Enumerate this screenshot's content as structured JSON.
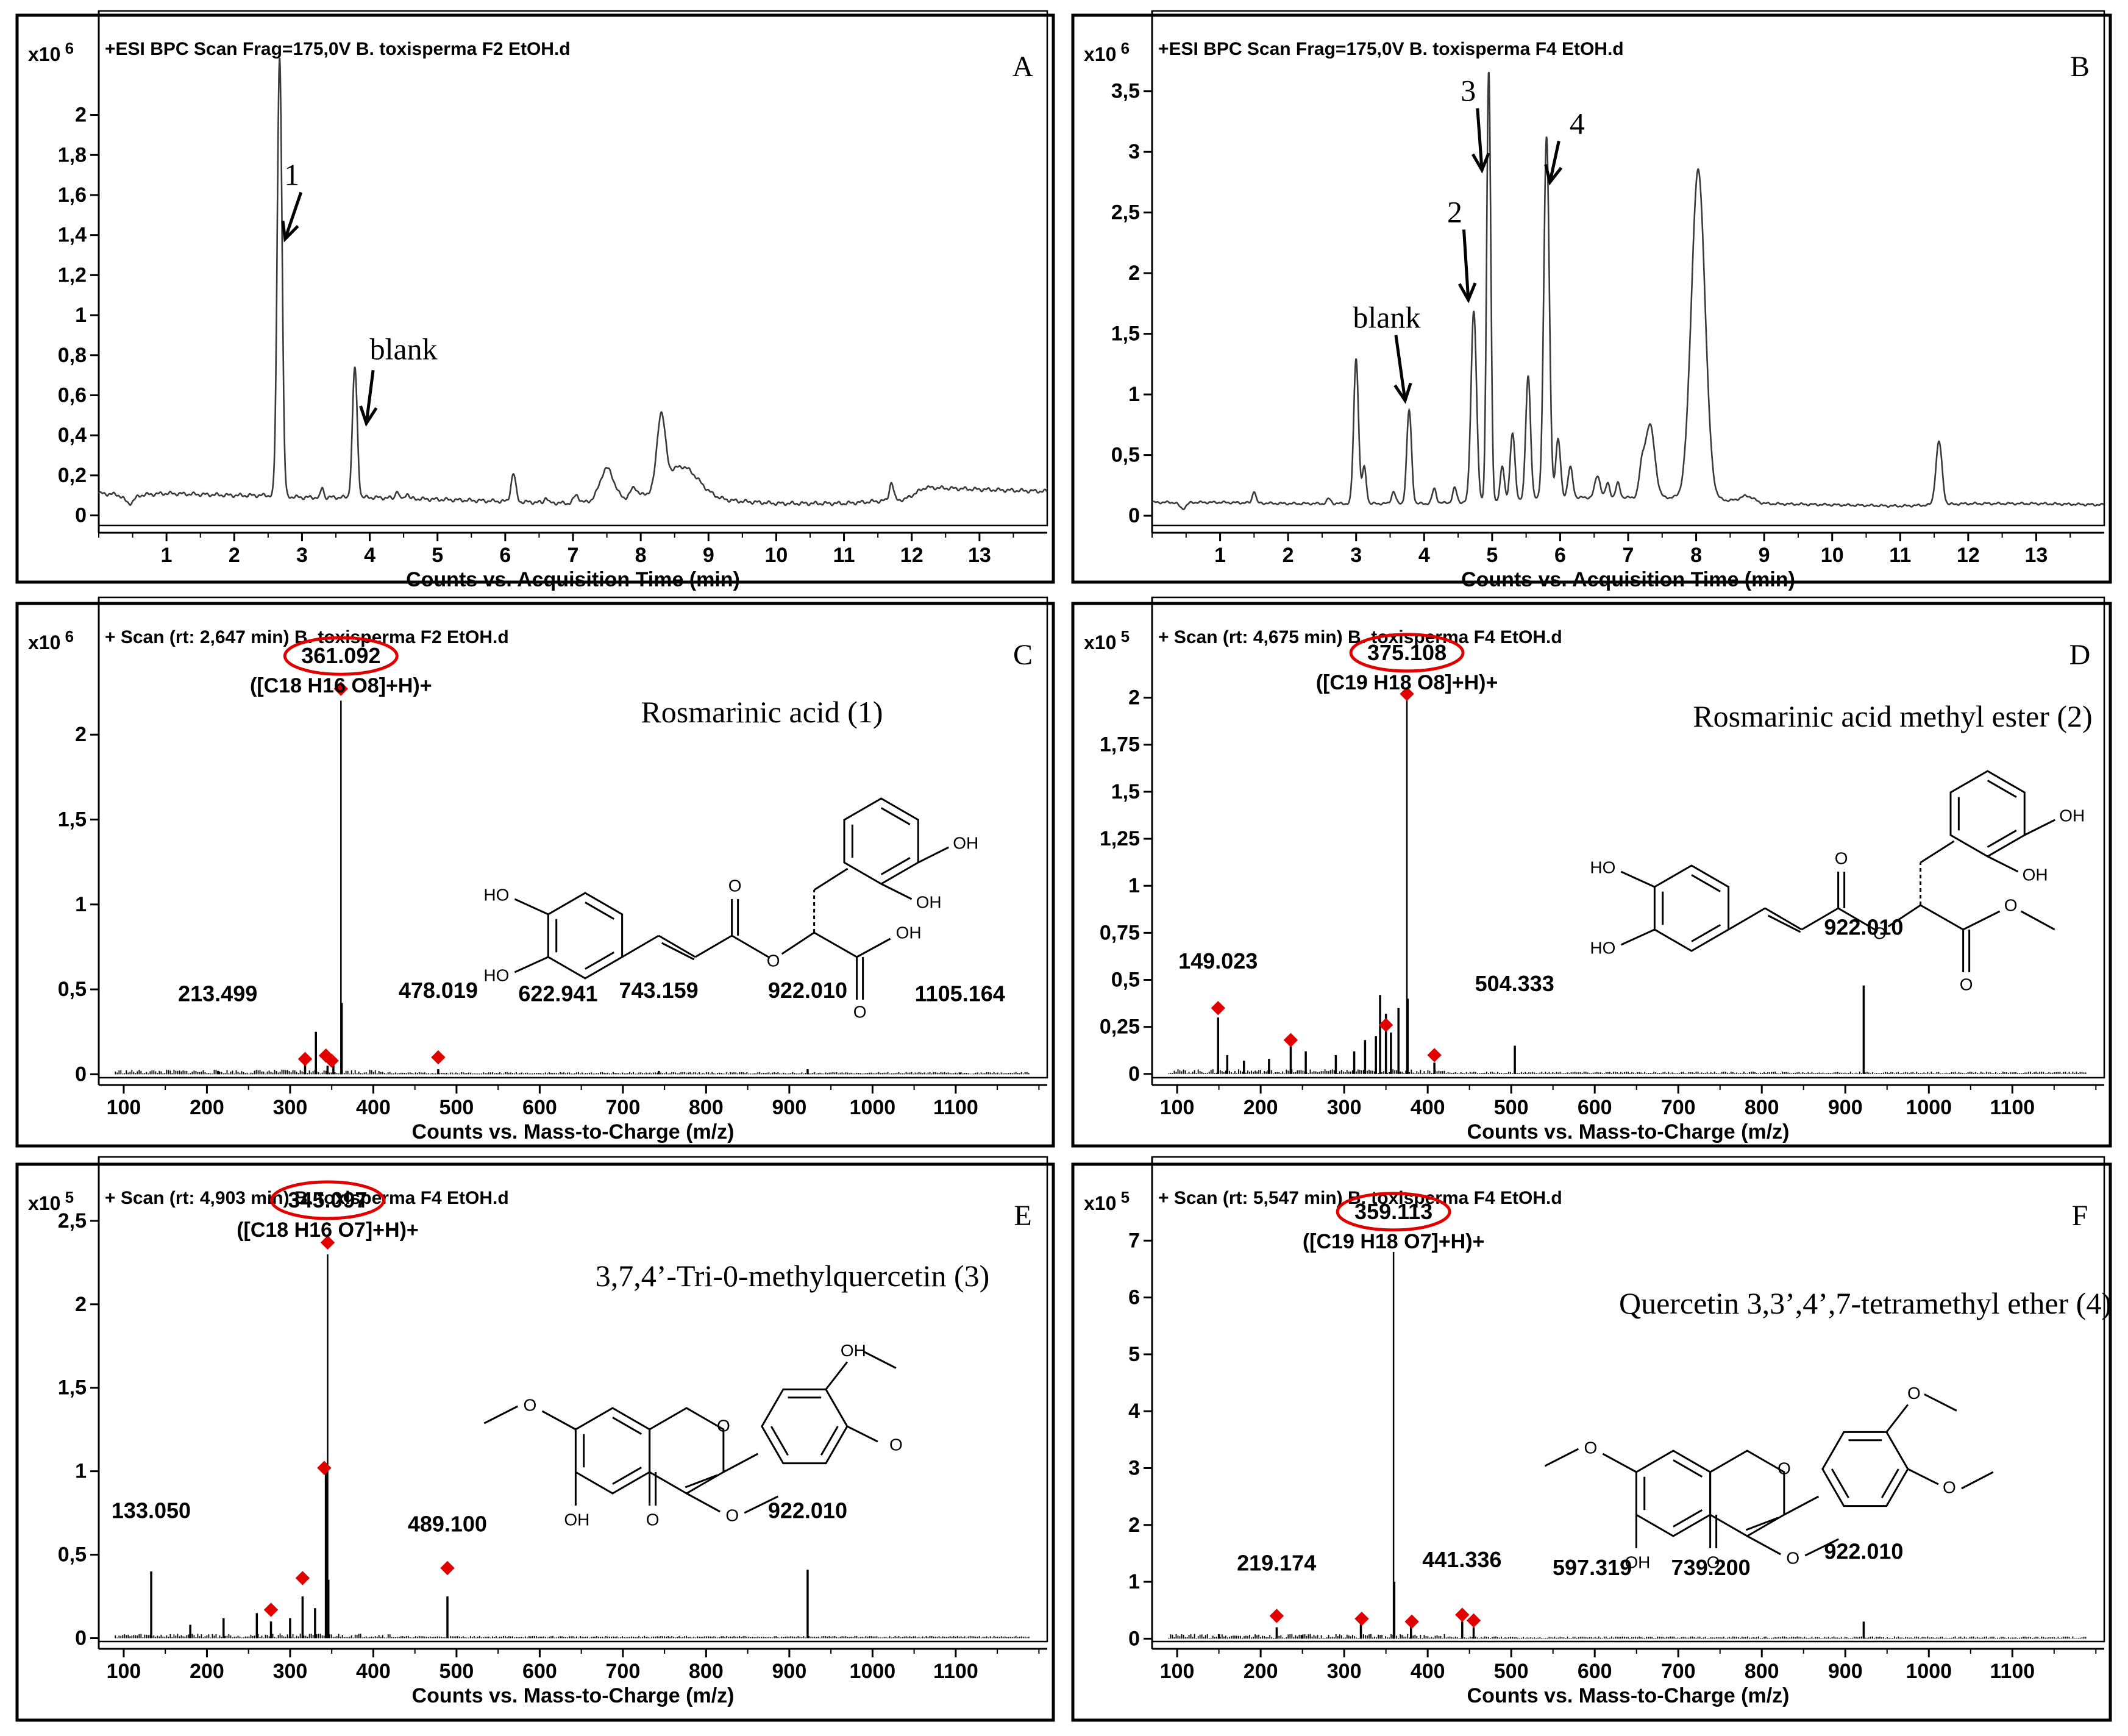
{
  "chart_data": [
    {
      "id": "A",
      "type": "line",
      "panel_letter": "A",
      "header": "+ESI BPC Scan Frag=175,0V B. toxisperma F2 EtOH.d",
      "y_scale_label": "x10",
      "y_scale_exp": "6",
      "xlabel": "Counts vs. Acquisition Time (min)",
      "xlim": [
        0,
        14
      ],
      "ylim": [
        -0.05,
        2.3
      ],
      "xticks": [
        1,
        2,
        3,
        4,
        5,
        6,
        7,
        8,
        9,
        10,
        11,
        12,
        13
      ],
      "xtick_labels": [
        "1",
        "2",
        "3",
        "4",
        "5",
        "6",
        "7",
        "8",
        "9",
        "10",
        "11",
        "12",
        "13"
      ],
      "yticks": [
        0,
        0.2,
        0.4,
        0.6,
        0.8,
        1,
        1.2,
        1.4,
        1.6,
        1.8,
        2
      ],
      "ytick_labels": [
        "0",
        "0,2",
        "0,4",
        "0,6",
        "0,8",
        "1",
        "1,2",
        "1,4",
        "1,6",
        "1,8",
        "2"
      ],
      "baseline": [
        [
          0,
          0.11
        ],
        [
          0.5,
          0.1
        ],
        [
          1,
          0.11
        ],
        [
          2,
          0.1
        ],
        [
          2.5,
          0.1
        ],
        [
          3,
          0.09
        ],
        [
          4,
          0.09
        ],
        [
          5,
          0.08
        ],
        [
          6,
          0.07
        ],
        [
          7,
          0.06
        ],
        [
          8,
          0.09
        ],
        [
          9,
          0.08
        ],
        [
          10,
          0.06
        ],
        [
          11,
          0.06
        ],
        [
          11.9,
          0.08
        ],
        [
          12.2,
          0.14
        ],
        [
          13,
          0.13
        ],
        [
          14,
          0.12
        ]
      ],
      "peaks": [
        [
          0.45,
          0.07,
          -0.04
        ],
        [
          2.67,
          0.035,
          2.2
        ],
        [
          3.3,
          0.02,
          0.05
        ],
        [
          3.78,
          0.035,
          0.65
        ],
        [
          4.4,
          0.02,
          0.04
        ],
        [
          4.55,
          0.02,
          0.03
        ],
        [
          6.12,
          0.035,
          0.14
        ],
        [
          6.6,
          0.02,
          0.03
        ],
        [
          7.05,
          0.04,
          0.04
        ],
        [
          7.5,
          0.1,
          0.16
        ],
        [
          7.9,
          0.05,
          0.05
        ],
        [
          8.3,
          0.06,
          0.35
        ],
        [
          8.6,
          0.25,
          0.16
        ],
        [
          11.7,
          0.03,
          0.09
        ]
      ],
      "annotations": [
        {
          "text": "1",
          "x": 2.85,
          "y": 1.65,
          "x2": 2.75,
          "y2": 1.38
        },
        {
          "text": "blank",
          "x": 4.5,
          "y": 0.78,
          "x2": 3.95,
          "y2": 0.46
        }
      ]
    },
    {
      "id": "B",
      "type": "line",
      "panel_letter": "B",
      "header": "+ESI BPC Scan Frag=175,0V B. toxisperma F4 EtOH.d",
      "y_scale_label": "x10",
      "y_scale_exp": "6",
      "xlabel": "Counts vs. Acquisition Time (min)",
      "xlim": [
        0,
        14
      ],
      "ylim": [
        -0.08,
        3.8
      ],
      "xticks": [
        1,
        2,
        3,
        4,
        5,
        6,
        7,
        8,
        9,
        10,
        11,
        12,
        13
      ],
      "xtick_labels": [
        "1",
        "2",
        "3",
        "4",
        "5",
        "6",
        "7",
        "8",
        "9",
        "10",
        "11",
        "12",
        "13"
      ],
      "yticks": [
        0,
        0.5,
        1,
        1.5,
        2,
        2.5,
        3,
        3.5
      ],
      "ytick_labels": [
        "0",
        "0,5",
        "1",
        "1,5",
        "2",
        "2,5",
        "3",
        "3,5"
      ],
      "baseline": [
        [
          0,
          0.11
        ],
        [
          1,
          0.11
        ],
        [
          2,
          0.1
        ],
        [
          3,
          0.1
        ],
        [
          4,
          0.1
        ],
        [
          5,
          0.12
        ],
        [
          6,
          0.15
        ],
        [
          7,
          0.15
        ],
        [
          8,
          0.15
        ],
        [
          9,
          0.1
        ],
        [
          10,
          0.09
        ],
        [
          11,
          0.08
        ],
        [
          12,
          0.1
        ],
        [
          13,
          0.1
        ],
        [
          14,
          0.09
        ]
      ],
      "peaks": [
        [
          0.45,
          0.05,
          -0.05
        ],
        [
          1.5,
          0.025,
          0.1
        ],
        [
          2.6,
          0.03,
          0.04
        ],
        [
          3.0,
          0.035,
          1.2
        ],
        [
          3.12,
          0.03,
          0.3
        ],
        [
          3.55,
          0.03,
          0.1
        ],
        [
          3.78,
          0.035,
          0.77
        ],
        [
          4.15,
          0.03,
          0.12
        ],
        [
          4.45,
          0.03,
          0.12
        ],
        [
          4.73,
          0.04,
          1.58
        ],
        [
          4.95,
          0.03,
          3.55
        ],
        [
          5.15,
          0.03,
          0.28
        ],
        [
          5.3,
          0.035,
          0.55
        ],
        [
          5.53,
          0.035,
          1.02
        ],
        [
          5.8,
          0.04,
          2.98
        ],
        [
          5.97,
          0.035,
          0.48
        ],
        [
          6.15,
          0.035,
          0.25
        ],
        [
          6.55,
          0.04,
          0.18
        ],
        [
          6.7,
          0.03,
          0.12
        ],
        [
          6.85,
          0.03,
          0.12
        ],
        [
          7.2,
          0.04,
          0.2
        ],
        [
          7.32,
          0.07,
          0.6
        ],
        [
          8.03,
          0.1,
          2.7
        ],
        [
          8.75,
          0.1,
          0.05
        ],
        [
          11.57,
          0.045,
          0.52
        ]
      ],
      "annotations": [
        {
          "text": "blank",
          "x": 3.45,
          "y": 1.55,
          "x2": 3.72,
          "y2": 0.95
        },
        {
          "text": "2",
          "x": 4.45,
          "y": 2.42,
          "x2": 4.65,
          "y2": 1.78
        },
        {
          "text": "3",
          "x": 4.65,
          "y": 3.42,
          "x2": 4.85,
          "y2": 2.85
        },
        {
          "text": "4",
          "x": 6.25,
          "y": 3.15,
          "x2": 5.85,
          "y2": 2.75
        }
      ]
    },
    {
      "id": "C",
      "type": "bar",
      "panel_letter": "C",
      "header": "+ Scan (rt: 2,647 min) B. toxisperma F2 EtOH.d",
      "y_scale_label": "x10",
      "y_scale_exp": "6",
      "xlabel": "Counts vs. Mass-to-Charge (m/z)",
      "xlim": [
        70,
        1210
      ],
      "ylim": [
        -0.02,
        2.55
      ],
      "xticks": [
        100,
        200,
        300,
        400,
        500,
        600,
        700,
        800,
        900,
        1000,
        1100
      ],
      "xtick_labels": [
        "100",
        "200",
        "300",
        "400",
        "500",
        "600",
        "700",
        "800",
        "900",
        "1000",
        "1100"
      ],
      "yticks": [
        0,
        0.5,
        1,
        1.5,
        2
      ],
      "ytick_labels": [
        "0",
        "0,5",
        "1",
        "1,5",
        "2"
      ],
      "peaks": [
        [
          361.092,
          2.2
        ],
        [
          362,
          0.42
        ],
        [
          331,
          0.25
        ],
        [
          318,
          0.12
        ],
        [
          345,
          0.05
        ],
        [
          352,
          0.07
        ],
        [
          478.019,
          0.03
        ],
        [
          213.499,
          0.02
        ],
        [
          743.159,
          0.02
        ],
        [
          922.01,
          0.03
        ],
        [
          1105.164,
          0.01
        ]
      ],
      "markers": [
        [
          318,
          0.09
        ],
        [
          343,
          0.11
        ],
        [
          350,
          0.08
        ],
        [
          478,
          0.1
        ],
        [
          361.092,
          2.27
        ]
      ],
      "peak_labels": [
        {
          "text": "213.499",
          "x": 213,
          "y": 0.43
        },
        {
          "text": "478.019",
          "x": 478,
          "y": 0.45
        },
        {
          "text": "622.941",
          "x": 622,
          "y": 0.43
        },
        {
          "text": "743.159",
          "x": 743,
          "y": 0.45
        },
        {
          "text": "922.010",
          "x": 922,
          "y": 0.45
        },
        {
          "text": "1105.164",
          "x": 1105,
          "y": 0.43
        }
      ],
      "main_label": "361.092",
      "main_x": 361.092,
      "main_y": 2.42,
      "formula": "([C18 H16 O8]+H)+",
      "compound": "Rosmarinic acid (1)",
      "structure_labels": [
        "HO",
        "HO",
        "OH",
        "OH",
        "O",
        "O",
        "O",
        "OH",
        "O"
      ]
    },
    {
      "id": "D",
      "type": "bar",
      "panel_letter": "D",
      "header": "+ Scan (rt: 4,675 min) B. toxisperma F4 EtOH.d",
      "y_scale_label": "x10",
      "y_scale_exp": "5",
      "xlabel": "Counts vs. Mass-to-Charge (m/z)",
      "xlim": [
        70,
        1210
      ],
      "ylim": [
        -0.02,
        2.3
      ],
      "xticks": [
        100,
        200,
        300,
        400,
        500,
        600,
        700,
        800,
        900,
        1000,
        1100
      ],
      "xtick_labels": [
        "100",
        "200",
        "300",
        "400",
        "500",
        "600",
        "700",
        "800",
        "900",
        "1000",
        "1100"
      ],
      "yticks": [
        0,
        0.25,
        0.5,
        0.75,
        1,
        1.25,
        1.5,
        1.75,
        2
      ],
      "ytick_labels": [
        "0",
        "0,25",
        "0,5",
        "0,75",
        "1",
        "1,25",
        "1,5",
        "1,75",
        "2"
      ],
      "peaks": [
        [
          375.108,
          2.0
        ],
        [
          149.023,
          0.3
        ],
        [
          343,
          0.42
        ],
        [
          350,
          0.32
        ],
        [
          356,
          0.22
        ],
        [
          365,
          0.35
        ],
        [
          376,
          0.4
        ],
        [
          236,
          0.15
        ],
        [
          254,
          0.12
        ],
        [
          210,
          0.08
        ],
        [
          312,
          0.12
        ],
        [
          408,
          0.06
        ],
        [
          504.333,
          0.15
        ],
        [
          922.01,
          0.47
        ],
        [
          160,
          0.1
        ],
        [
          180,
          0.07
        ],
        [
          290,
          0.1
        ],
        [
          325,
          0.18
        ],
        [
          338,
          0.2
        ]
      ],
      "markers": [
        [
          149.023,
          0.35
        ],
        [
          236,
          0.18
        ],
        [
          350,
          0.26
        ],
        [
          408,
          0.1
        ],
        [
          375.108,
          2.02
        ]
      ],
      "peak_labels": [
        {
          "text": "149.023",
          "x": 149,
          "y": 0.56
        },
        {
          "text": "504.333",
          "x": 504,
          "y": 0.44
        },
        {
          "text": "922.010",
          "x": 922,
          "y": 0.74
        }
      ],
      "main_label": "375.108",
      "main_x": 375.108,
      "main_y": 2.2,
      "formula": "([C19 H18 O8]+H)+",
      "compound": "Rosmarinic acid methyl ester (2)",
      "structure_labels": [
        "HO",
        "HO",
        "OH",
        "OH",
        "O",
        "O",
        "O",
        "O"
      ]
    },
    {
      "id": "E",
      "type": "bar",
      "panel_letter": "E",
      "header": "+ Scan (rt: 4,903 min) B. toxisperma F4 EtOH.d",
      "y_scale_label": "x10",
      "y_scale_exp": "5",
      "xlabel": "Counts vs. Mass-to-Charge (m/z)",
      "xlim": [
        70,
        1210
      ],
      "ylim": [
        -0.02,
        2.62
      ],
      "xticks": [
        100,
        200,
        300,
        400,
        500,
        600,
        700,
        800,
        900,
        1000,
        1100
      ],
      "xtick_labels": [
        "100",
        "200",
        "300",
        "400",
        "500",
        "600",
        "700",
        "800",
        "900",
        "1000",
        "1100"
      ],
      "yticks": [
        0,
        0.5,
        1,
        1.5,
        2,
        2.5
      ],
      "ytick_labels": [
        "0",
        "0,5",
        "1",
        "1,5",
        "2",
        "2,5"
      ],
      "peaks": [
        [
          345.097,
          2.3
        ],
        [
          343,
          1.0
        ],
        [
          346,
          0.35
        ],
        [
          133.05,
          0.4
        ],
        [
          489.1,
          0.25
        ],
        [
          922.01,
          0.41
        ],
        [
          315,
          0.25
        ],
        [
          277,
          0.1
        ],
        [
          220,
          0.12
        ],
        [
          180,
          0.08
        ],
        [
          260,
          0.15
        ],
        [
          300,
          0.12
        ],
        [
          330,
          0.18
        ]
      ],
      "markers": [
        [
          277,
          0.17
        ],
        [
          315,
          0.36
        ],
        [
          341,
          1.02
        ],
        [
          345.097,
          2.37
        ],
        [
          489.1,
          0.42
        ]
      ],
      "peak_labels": [
        {
          "text": "133.050",
          "x": 133,
          "y": 0.72
        },
        {
          "text": "489.100",
          "x": 489,
          "y": 0.64
        },
        {
          "text": "922.010",
          "x": 922,
          "y": 0.72
        }
      ],
      "main_label": "345.097",
      "main_x": 345.097,
      "main_y": 2.58,
      "formula": "([C18 H16 O7]+H)+",
      "compound": "3,7,4’-Tri-0-methylquercetin (3)",
      "structure_labels": [
        "O",
        "OH",
        "O",
        "O",
        "OH",
        "O",
        "O"
      ]
    },
    {
      "id": "F",
      "type": "bar",
      "panel_letter": "F",
      "header": "+ Scan (rt: 5,547 min) B. toxisperma F4 EtOH.d",
      "y_scale_label": "x10",
      "y_scale_exp": "5",
      "xlabel": "Counts vs. Mass-to-Charge (m/z)",
      "xlim": [
        70,
        1210
      ],
      "ylim": [
        -0.05,
        7.7
      ],
      "xticks": [
        100,
        200,
        300,
        400,
        500,
        600,
        700,
        800,
        900,
        1000,
        1100
      ],
      "xtick_labels": [
        "100",
        "200",
        "300",
        "400",
        "500",
        "600",
        "700",
        "800",
        "900",
        "1000",
        "1100"
      ],
      "yticks": [
        0,
        1,
        2,
        3,
        4,
        5,
        6,
        7
      ],
      "ytick_labels": [
        "0",
        "1",
        "2",
        "3",
        "4",
        "5",
        "6",
        "7"
      ],
      "peaks": [
        [
          359.113,
          6.8
        ],
        [
          360,
          1.0
        ],
        [
          219.174,
          0.2
        ],
        [
          320,
          0.25
        ],
        [
          380,
          0.22
        ],
        [
          441.336,
          0.3
        ],
        [
          455,
          0.2
        ],
        [
          922.01,
          0.3
        ],
        [
          150,
          0.08
        ],
        [
          250,
          0.06
        ]
      ],
      "markers": [
        [
          219.174,
          0.4
        ],
        [
          321,
          0.35
        ],
        [
          381,
          0.3
        ],
        [
          441.336,
          0.42
        ],
        [
          455,
          0.32
        ]
      ],
      "peak_labels": [
        {
          "text": "219.174",
          "x": 219,
          "y": 1.2
        },
        {
          "text": "441.336",
          "x": 441,
          "y": 1.26
        },
        {
          "text": "597.319",
          "x": 597,
          "y": 1.12
        },
        {
          "text": "739.200",
          "x": 739,
          "y": 1.12
        },
        {
          "text": "922.010",
          "x": 922,
          "y": 1.4
        }
      ],
      "main_label": "359.113",
      "main_x": 359.113,
      "main_y": 7.38,
      "formula": "([C19 H18 O7]+H)+",
      "compound": "Quercetin 3,3’,4’,7-tetramethyl ether (4)",
      "structure_labels": [
        "O",
        "OH",
        "O",
        "O",
        "O",
        "O",
        "O"
      ]
    }
  ]
}
